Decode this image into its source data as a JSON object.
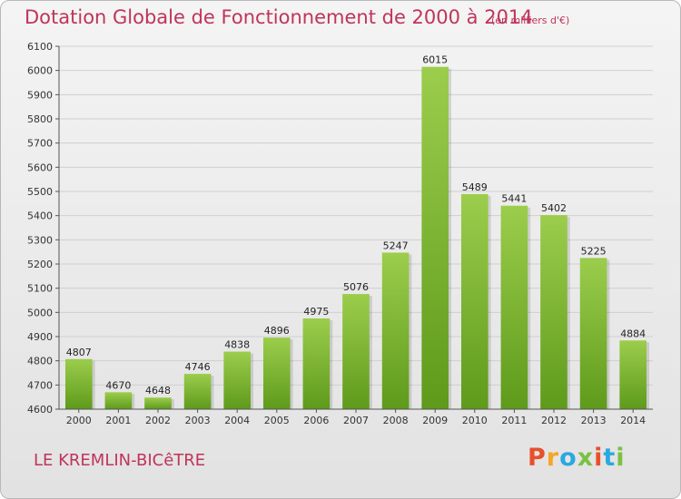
{
  "header": {
    "title": "Dotation Globale de Fonctionnement de 2000 à 2014",
    "subtitle": "(en milliers d'€)"
  },
  "footer": {
    "commune": "LE KREMLIN-BICêTRE",
    "logo_letters": [
      "P",
      "r",
      "o",
      "x",
      "i",
      "t",
      "i"
    ],
    "logo_colors": [
      "#e8502a",
      "#f5a623",
      "#29a9e0",
      "#7ac142",
      "#e8502a",
      "#29a9e0",
      "#7ac142"
    ]
  },
  "chart_data": {
    "type": "bar",
    "categories": [
      "2000",
      "2001",
      "2002",
      "2003",
      "2004",
      "2005",
      "2006",
      "2007",
      "2008",
      "2009",
      "2010",
      "2011",
      "2012",
      "2013",
      "2014"
    ],
    "values": [
      4807,
      4670,
      4648,
      4746,
      4838,
      4896,
      4975,
      5076,
      5247,
      6015,
      5489,
      5441,
      5402,
      5225,
      4884
    ],
    "title": "Dotation Globale de Fonctionnement de 2000 à 2014",
    "subtitle": "(en milliers d'€)",
    "xlabel": "",
    "ylabel": "",
    "ylim": [
      4600,
      6100
    ],
    "yticks": [
      4600,
      4700,
      4800,
      4900,
      5000,
      5100,
      5200,
      5300,
      5400,
      5500,
      5600,
      5700,
      5800,
      5900,
      6000,
      6100
    ],
    "grid": true,
    "bar_color_top": "#9ccd4c",
    "bar_color_bottom": "#5e9a1b"
  }
}
